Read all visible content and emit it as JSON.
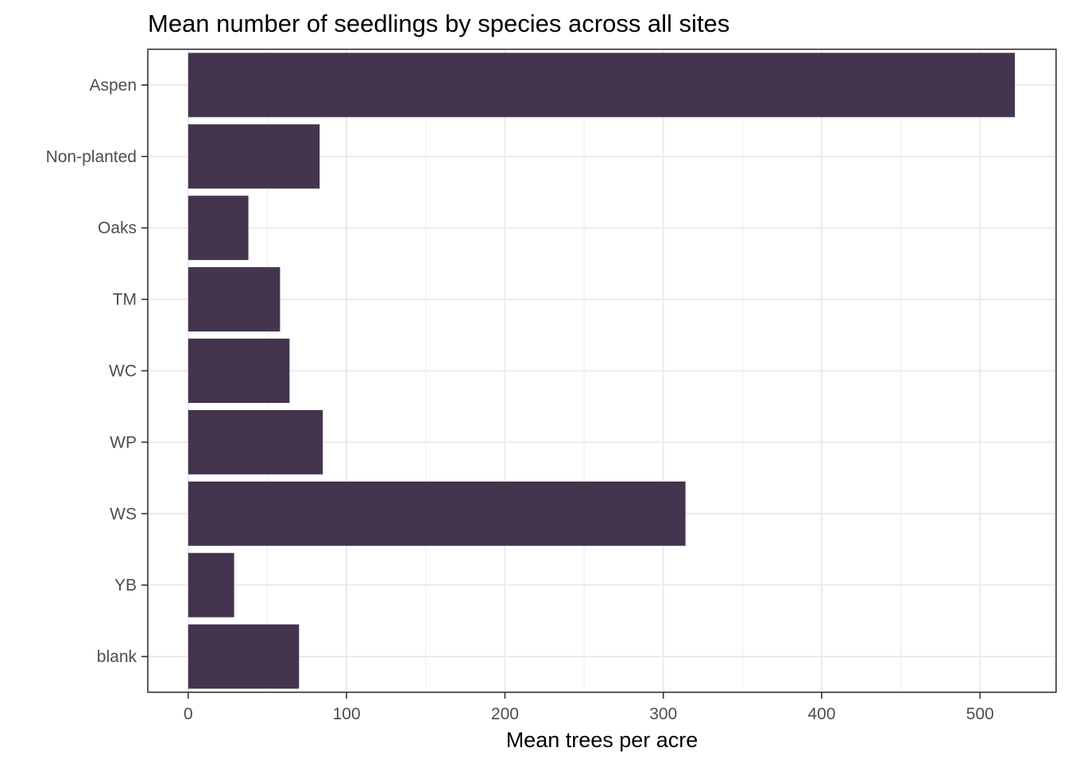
{
  "chart_data": {
    "type": "bar",
    "orientation": "horizontal",
    "title": "Mean number of seedlings by species across all sites",
    "xlabel": "Mean trees per acre",
    "ylabel": "",
    "categories": [
      "Aspen",
      "Non-planted",
      "Oaks",
      "TM",
      "WC",
      "WP",
      "WS",
      "YB",
      "blank"
    ],
    "values": [
      522,
      83,
      38,
      58,
      64,
      85,
      314,
      29,
      70
    ],
    "xlim": [
      -25.5,
      548
    ],
    "x_ticks": [
      0,
      100,
      200,
      300,
      400,
      500
    ],
    "x_tick_labels": [
      "0",
      "100",
      "200",
      "300",
      "400",
      "500"
    ],
    "x_minor_ticks": [
      50,
      150,
      250,
      350,
      450
    ],
    "grid": true,
    "bar_color": "#45344d",
    "gridline_color": "#ebebeb",
    "panel_border_color": "#333333"
  }
}
